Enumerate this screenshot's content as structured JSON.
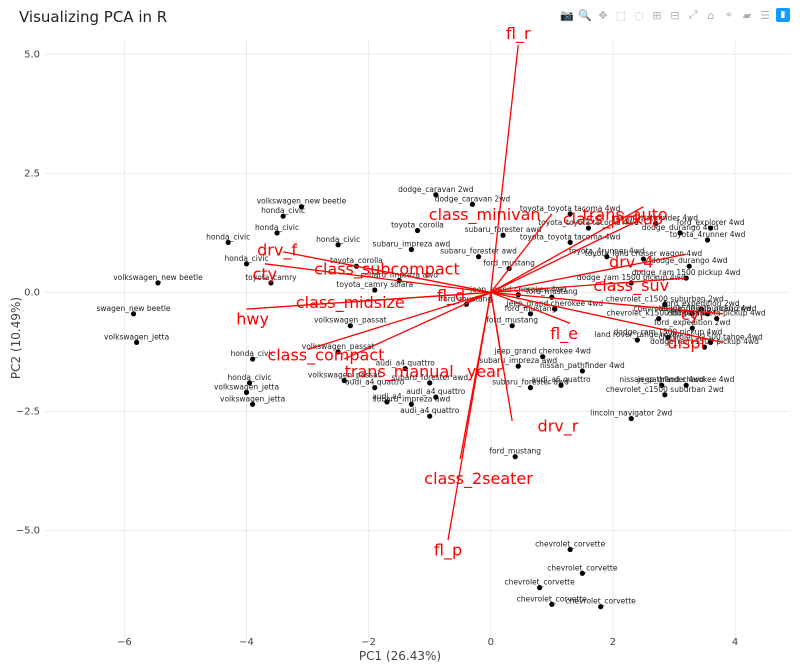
{
  "title": "Visualizing PCA in R",
  "modebar": [
    {
      "name": "camera-icon",
      "glyph": "📷"
    },
    {
      "name": "zoom-icon",
      "glyph": "🔍"
    },
    {
      "name": "pan-icon",
      "glyph": "✥"
    },
    {
      "name": "box-select-icon",
      "glyph": "⬚"
    },
    {
      "name": "lasso-icon",
      "glyph": "◌"
    },
    {
      "name": "zoom-in-icon",
      "glyph": "⊞"
    },
    {
      "name": "zoom-out-icon",
      "glyph": "⊟"
    },
    {
      "name": "autoscale-icon",
      "glyph": "⤢"
    },
    {
      "name": "home-icon",
      "glyph": "⌂"
    },
    {
      "name": "spike-icon",
      "glyph": "⌖"
    },
    {
      "name": "hover-closest-icon",
      "glyph": "▰"
    },
    {
      "name": "hover-compare-icon",
      "glyph": "☰"
    },
    {
      "name": "plotly-logo-icon",
      "glyph": "▮"
    }
  ],
  "chart_data": {
    "type": "scatter",
    "title": "Visualizing PCA in R",
    "xlabel": "PC1 (26.43%)",
    "ylabel": "PC2 (10.49%)",
    "xlim": [
      -7.3,
      4.9
    ],
    "ylim": [
      -7.3,
      5.3
    ],
    "xticks": [
      -6,
      -4,
      -2,
      0,
      2,
      4
    ],
    "yticks": [
      5.0,
      2.5,
      0,
      -2.5,
      -5.0
    ],
    "xtick_labels": [
      "−6",
      "−4",
      "−2",
      "0",
      "2",
      "4"
    ],
    "ytick_labels": [
      "5.0",
      "2.5",
      "0.0",
      "−2.5",
      "−5.0"
    ],
    "grid": true,
    "loadings": [
      {
        "name": "fl_r",
        "x": 0.45,
        "y": 5.2,
        "lx": 0.45,
        "ly": 5.45
      },
      {
        "name": "fl_p",
        "x": -0.7,
        "y": -5.2,
        "lx": -0.7,
        "ly": -5.4
      },
      {
        "name": "class_2seater",
        "x": -0.5,
        "y": -3.5,
        "lx": -0.2,
        "ly": -3.9
      },
      {
        "name": "drv_r",
        "x": 0.35,
        "y": -2.7,
        "lx": 1.1,
        "ly": -2.8
      },
      {
        "name": "hwy",
        "x": -4.0,
        "y": -0.35,
        "lx": -3.9,
        "ly": -0.55
      },
      {
        "name": "cty",
        "x": -3.7,
        "y": 0.6,
        "lx": -3.7,
        "ly": 0.4
      },
      {
        "name": "drv_f",
        "x": -3.4,
        "y": 0.85,
        "lx": -3.5,
        "ly": 0.9
      },
      {
        "name": "class_midsize",
        "x": -2.3,
        "y": -0.2,
        "lx": -2.3,
        "ly": -0.2
      },
      {
        "name": "class_compact",
        "x": -3.0,
        "y": -1.2,
        "lx": -2.7,
        "ly": -1.3
      },
      {
        "name": "trans_manual",
        "x": -2.4,
        "y": -1.4,
        "lx": -1.5,
        "ly": -1.65
      },
      {
        "name": "year",
        "x": 0.2,
        "y": -1.6,
        "lx": -0.1,
        "ly": -1.65
      },
      {
        "name": "fl_e",
        "x": 1.3,
        "y": -0.65,
        "lx": 1.2,
        "ly": -0.85
      },
      {
        "name": "class_pickup",
        "x": 2.4,
        "y": 1.5,
        "lx": 2.0,
        "ly": 1.55
      },
      {
        "name": "class_minivan",
        "x": 1.0,
        "y": 1.65,
        "lx": -0.1,
        "ly": 1.65
      },
      {
        "name": "trans_auto",
        "x": 2.5,
        "y": 1.8,
        "lx": 2.2,
        "ly": 1.65
      },
      {
        "name": "class_subcompact",
        "x": -2.0,
        "y": 0.5,
        "lx": -1.7,
        "ly": 0.5
      },
      {
        "name": "drv_4",
        "x": 3.2,
        "y": 0.8,
        "lx": 2.3,
        "ly": 0.65
      },
      {
        "name": "class_suv",
        "x": 3.2,
        "y": 0.3,
        "lx": 2.3,
        "ly": 0.15
      },
      {
        "name": "cyl",
        "x": 3.8,
        "y": -0.45,
        "lx": 3.3,
        "ly": -0.45
      },
      {
        "name": "displ",
        "x": 3.8,
        "y": -1.05,
        "lx": 3.2,
        "ly": -1.05
      },
      {
        "name": "fl_d",
        "x": -0.4,
        "y": -0.2,
        "lx": -0.65,
        "ly": -0.05
      }
    ],
    "points": [
      {
        "x": -5.85,
        "y": -0.45,
        "label": "swagen_new beetle"
      },
      {
        "x": -5.8,
        "y": -1.05,
        "label": "volkswagen_jetta"
      },
      {
        "x": -5.45,
        "y": 0.2,
        "label": "volkswagen_new beetle"
      },
      {
        "x": -4.3,
        "y": 1.05,
        "label": "honda_civic"
      },
      {
        "x": -3.4,
        "y": 1.6,
        "label": "honda_civic"
      },
      {
        "x": -3.5,
        "y": 1.25,
        "label": "honda_civic"
      },
      {
        "x": -4.0,
        "y": 0.6,
        "label": "honda_civic"
      },
      {
        "x": -3.6,
        "y": 0.2,
        "label": "toyota_camry"
      },
      {
        "x": -3.1,
        "y": 1.8,
        "label": "volkswagen_new beetle"
      },
      {
        "x": -1.2,
        "y": 1.3,
        "label": "toyota_corolla"
      },
      {
        "x": -0.9,
        "y": 2.05,
        "label": "dodge_caravan 2wd"
      },
      {
        "x": -0.3,
        "y": 1.85,
        "label": "dodge_caravan 2wd"
      },
      {
        "x": 1.3,
        "y": 1.65,
        "label": "toyota_toyota tacoma 4wd"
      },
      {
        "x": 0.3,
        "y": 0.5,
        "label": "ford_mustang"
      },
      {
        "x": -1.9,
        "y": 0.05,
        "label": "toyota_camry solara"
      },
      {
        "x": -2.3,
        "y": -0.7,
        "label": "volkswagen_passat"
      },
      {
        "x": -2.5,
        "y": -1.25,
        "label": "volkswagen_passat"
      },
      {
        "x": -3.9,
        "y": -1.4,
        "label": "honda_civic"
      },
      {
        "x": -4.0,
        "y": -2.1,
        "label": "volkswagen_jetta"
      },
      {
        "x": -3.95,
        "y": -1.9,
        "label": "honda_civic"
      },
      {
        "x": -3.9,
        "y": -2.35,
        "label": "volkswagen_jetta"
      },
      {
        "x": -2.4,
        "y": -1.85,
        "label": "volkswagen_passat"
      },
      {
        "x": -1.9,
        "y": -2.0,
        "label": "audi_a4 quattro"
      },
      {
        "x": -1.7,
        "y": -2.3,
        "label": "audi_a4"
      },
      {
        "x": -1.3,
        "y": -2.35,
        "label": "subaru_impreza awd"
      },
      {
        "x": -0.9,
        "y": -2.2,
        "label": "audi_a4 quattro"
      },
      {
        "x": -1.0,
        "y": -1.9,
        "label": "subaru_forester awd"
      },
      {
        "x": -1.0,
        "y": -2.6,
        "label": "audi_a4 quattro"
      },
      {
        "x": -1.4,
        "y": -1.6,
        "label": "audi_a4 quattro"
      },
      {
        "x": 0.45,
        "y": -1.55,
        "label": "subaru_impreza awd"
      },
      {
        "x": 0.65,
        "y": -2.0,
        "label": "subaru_forester awd"
      },
      {
        "x": 1.5,
        "y": -1.65,
        "label": "nissan_pathfinder 4wd"
      },
      {
        "x": 0.65,
        "y": -0.45,
        "label": "ford_mustang"
      },
      {
        "x": -0.4,
        "y": -0.25,
        "label": "ford_mustang"
      },
      {
        "x": 0.35,
        "y": -0.7,
        "label": "ford_mustang"
      },
      {
        "x": 1.0,
        "y": -0.1,
        "label": "ford_mustang"
      },
      {
        "x": 0.45,
        "y": -0.05,
        "label": "jeep_grand cherokee 4wd"
      },
      {
        "x": 1.05,
        "y": -0.35,
        "label": "jeep_grand cherokee 4wd"
      },
      {
        "x": 0.85,
        "y": -1.35,
        "label": "jeep_grand cherokee 4wd"
      },
      {
        "x": 1.15,
        "y": -1.95,
        "label": "audi_a6 quattro"
      },
      {
        "x": 0.4,
        "y": -3.45,
        "label": "ford_mustang"
      },
      {
        "x": 2.4,
        "y": -1.0,
        "label": "land rover_range rover"
      },
      {
        "x": 2.9,
        "y": -0.95,
        "label": "dodge_ram 1500 pickup 4wd"
      },
      {
        "x": 2.75,
        "y": -0.55,
        "label": "chevrolet_k1500 tahoe 4wd"
      },
      {
        "x": 3.3,
        "y": -0.45,
        "label": "chevrolet_c1500 suburban 2wd"
      },
      {
        "x": 2.85,
        "y": -0.25,
        "label": "chevrolet_c1500 suburban 2wd"
      },
      {
        "x": 2.8,
        "y": -1.95,
        "label": "nissan_pathfinder 4wd"
      },
      {
        "x": 2.85,
        "y": -2.15,
        "label": "chevrolet_c1500 suburban 2wd"
      },
      {
        "x": 3.2,
        "y": -1.95,
        "label": "jeep_grand cherokee 4wd"
      },
      {
        "x": 2.3,
        "y": -2.65,
        "label": "lincoln_navigator 2wd"
      },
      {
        "x": 3.3,
        "y": -0.75,
        "label": "ford_expedition 2wd"
      },
      {
        "x": 3.5,
        "y": -1.15,
        "label": "dodge_ram 1500 pickup 4wd"
      },
      {
        "x": 3.6,
        "y": -1.05,
        "label": "chevrolet_k1500 tahoe 4wd"
      },
      {
        "x": 3.55,
        "y": -0.45,
        "label": "dodge_dakota pickup 4wd"
      },
      {
        "x": 3.45,
        "y": -0.35,
        "label": "ford_expedition 2wd"
      },
      {
        "x": 3.7,
        "y": -0.55,
        "label": "dodge_dakota pickup 4wd"
      },
      {
        "x": 3.25,
        "y": 0.55,
        "label": "dodge_durango 4wd"
      },
      {
        "x": 3.1,
        "y": 1.25,
        "label": "dodge_durango 4wd"
      },
      {
        "x": 3.55,
        "y": 1.1,
        "label": "toyota_4runner 4wd"
      },
      {
        "x": 3.6,
        "y": 1.35,
        "label": "ford_explorer 4wd"
      },
      {
        "x": 2.5,
        "y": 0.7,
        "label": "toyota_land cruiser wagon 4wd"
      },
      {
        "x": 3.2,
        "y": 0.3,
        "label": "dodge_ram 1500 pickup 4wd"
      },
      {
        "x": 2.3,
        "y": 0.2,
        "label": "dodge_ram 1500 pickup 4wd"
      },
      {
        "x": 1.9,
        "y": 0.75,
        "label": "toyota_4runner 4wd"
      },
      {
        "x": 1.3,
        "y": 1.05,
        "label": "toyota_toyota tacoma 4wd"
      },
      {
        "x": 2.7,
        "y": 1.45,
        "label": "nissan_pathfinder 4wd"
      },
      {
        "x": 1.6,
        "y": 1.35,
        "label": "toyota_toyota tacoma 4wd"
      },
      {
        "x": 0.2,
        "y": 1.2,
        "label": "subaru_forester awd"
      },
      {
        "x": -0.2,
        "y": 0.75,
        "label": "subaru_forester awd"
      },
      {
        "x": -1.3,
        "y": 0.9,
        "label": "subaru_impreza awd"
      },
      {
        "x": -2.2,
        "y": 0.55,
        "label": "toyota_corolla"
      },
      {
        "x": -1.5,
        "y": 0.25,
        "label": "subaru_impreza awd"
      },
      {
        "x": -2.5,
        "y": 1.0,
        "label": "honda_civic"
      },
      {
        "x": 1.3,
        "y": -5.4,
        "label": "chevrolet_corvette"
      },
      {
        "x": 1.5,
        "y": -5.9,
        "label": "chevrolet_corvette"
      },
      {
        "x": 0.8,
        "y": -6.2,
        "label": "chevrolet_corvette"
      },
      {
        "x": 1.0,
        "y": -6.55,
        "label": "chevrolet_corvette"
      },
      {
        "x": 1.8,
        "y": -6.6,
        "label": "chevrolet_corvette"
      }
    ]
  }
}
